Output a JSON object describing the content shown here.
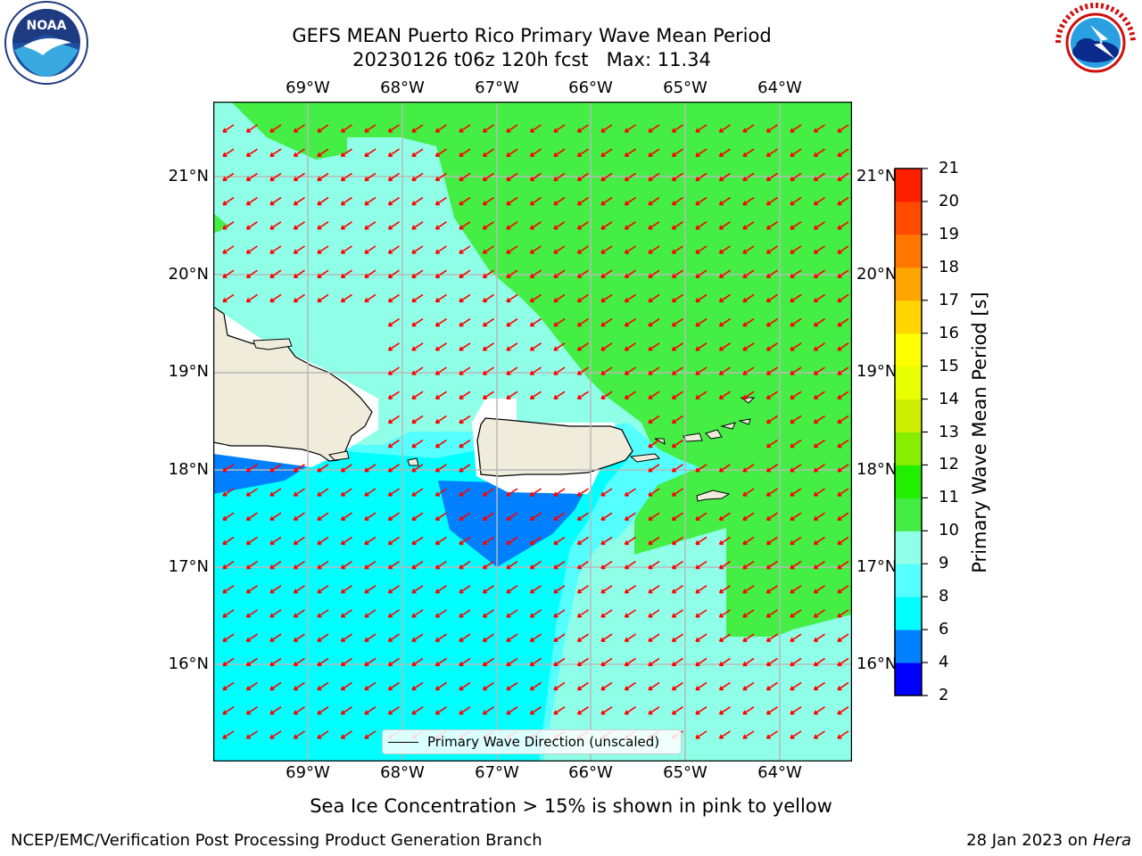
{
  "title": {
    "line1": "GEFS MEAN Puerto Rico Primary Wave Mean Period",
    "line2": "20230126 t06z 120h fcst   Max: 11.34"
  },
  "logos": {
    "left": "noaa-logo",
    "right": "nws-logo"
  },
  "map": {
    "lon_labels": [
      "69°W",
      "68°W",
      "67°W",
      "66°W",
      "65°W",
      "64°W"
    ],
    "lat_labels": [
      "21°N",
      "20°N",
      "19°N",
      "18°N",
      "17°N",
      "16°N"
    ],
    "legend_label": "Primary Wave Direction (unscaled)",
    "arrow_color": "#ff0000",
    "land_color": "#efecdc"
  },
  "colorbar": {
    "label": "Primary Wave Mean Period [s]",
    "ticks": [
      "2",
      "4",
      "6",
      "8",
      "9",
      "10",
      "11",
      "12",
      "13",
      "14",
      "15",
      "16",
      "17",
      "18",
      "19",
      "20",
      "21"
    ],
    "colors": [
      "#0000ff",
      "#0080ff",
      "#00ffff",
      "#55ffff",
      "#90ffe8",
      "#44ee44",
      "#22ee00",
      "#88ee00",
      "#ccee00",
      "#e8ff00",
      "#ffff00",
      "#ffd400",
      "#ffa500",
      "#ff7700",
      "#ff4a00",
      "#ff2000"
    ]
  },
  "sea_ice_note": "Sea Ice Concentration > 15% is shown in pink to yellow",
  "footer": {
    "left": "NCEP/EMC/Verification Post Processing Product Generation Branch",
    "right_date": "28 Jan 2023 on",
    "right_host": "Hera"
  }
}
